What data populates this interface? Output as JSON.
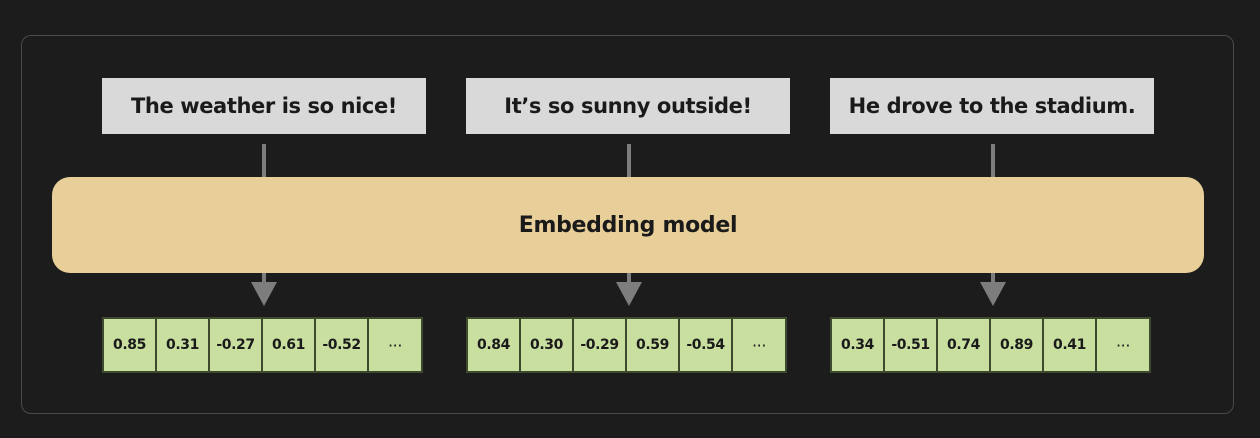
{
  "sentences": [
    "The weather is so nice!",
    "It’s so sunny outside!",
    "He drove to the stadium."
  ],
  "model_label": "Embedding model",
  "vectors": [
    [
      "0.85",
      "0.31",
      "-0.27",
      "0.61",
      "-0.52",
      "···"
    ],
    [
      "0.84",
      "0.30",
      "-0.29",
      "0.59",
      "-0.54",
      "···"
    ],
    [
      "0.34",
      "-0.51",
      "0.74",
      "0.89",
      "0.41",
      "···"
    ]
  ],
  "colors": {
    "background": "#1c1c1c",
    "sentence_box": "#d9d9d9",
    "model_box": "#e8cf99",
    "vector_cell": "#c8dfa0",
    "connector": "#7d7d7d"
  }
}
